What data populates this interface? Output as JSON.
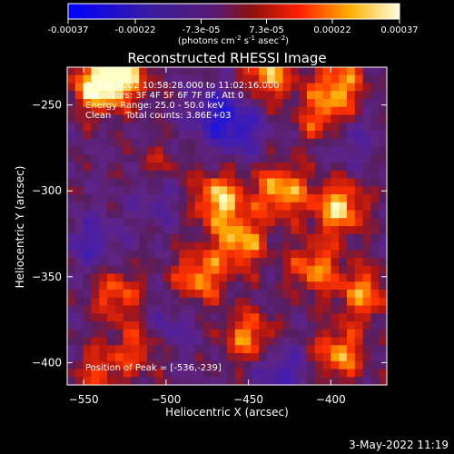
{
  "chart_data": {
    "type": "heatmap",
    "title": "Reconstructed RHESSI Image",
    "xlabel": "Heliocentric X (arcsec)",
    "ylabel": "Heliocentric Y (arcsec)",
    "xlim": [
      -560,
      -366
    ],
    "ylim": [
      -413,
      -228
    ],
    "x_ticks": [
      -550,
      -500,
      -450,
      -400
    ],
    "y_ticks": [
      -250,
      -300,
      -350,
      -400
    ],
    "colorbar": {
      "range": [
        -0.00037,
        0.00037
      ],
      "tick_values": [
        -0.00037,
        -0.00022,
        -7.3e-05,
        7.3e-05,
        0.00022,
        0.00037
      ],
      "tick_labels": [
        "-0.00037",
        "-0.00022",
        "-7.3e-05",
        "7.3e-05",
        "0.00022",
        "0.00037"
      ],
      "units_prefix": "(photons cm",
      "units_exp1": "-2",
      "units_mid": " s",
      "units_exp2": "-1",
      "units_mid2": " asec",
      "units_exp3": "-2",
      "units_suffix": ")"
    },
    "annotations": [
      "2-May-2002 10:58:28.000 to 11:02:16.000",
      "Detectors: 3F 4F 5F 6F 7F 8F, Att 0",
      "Energy Range: 25.0 - 50.0 keV",
      "Clean     Total counts: 3.86E+03"
    ],
    "peak_label": "Position of Peak = [-536,-239]",
    "peak": [
      -536,
      -239
    ],
    "hotspots": [
      {
        "x": -542,
        "y": -239,
        "v": 1.0
      },
      {
        "x": -525,
        "y": -232,
        "v": 0.85
      },
      {
        "x": -438,
        "y": -232,
        "v": 0.8
      },
      {
        "x": -395,
        "y": -238,
        "v": 0.75
      },
      {
        "x": -405,
        "y": -258,
        "v": 0.6
      },
      {
        "x": -468,
        "y": -305,
        "v": 0.9
      },
      {
        "x": -430,
        "y": -300,
        "v": 0.85
      },
      {
        "x": -395,
        "y": -310,
        "v": 0.9
      },
      {
        "x": -455,
        "y": -330,
        "v": 0.8
      },
      {
        "x": -410,
        "y": -345,
        "v": 0.7
      },
      {
        "x": -480,
        "y": -350,
        "v": 0.75
      },
      {
        "x": -530,
        "y": -360,
        "v": 0.6
      },
      {
        "x": -515,
        "y": -390,
        "v": 0.55
      },
      {
        "x": -450,
        "y": -385,
        "v": 0.7
      },
      {
        "x": -395,
        "y": -395,
        "v": 0.75
      },
      {
        "x": -540,
        "y": -405,
        "v": 0.5
      },
      {
        "x": -505,
        "y": -290,
        "v": 0.5
      },
      {
        "x": -380,
        "y": -360,
        "v": 0.7
      }
    ],
    "coldspots": [
      {
        "x": -470,
        "y": -255,
        "v": -0.6
      },
      {
        "x": -455,
        "y": -265,
        "v": -0.55
      },
      {
        "x": -505,
        "y": -300,
        "v": -0.5
      },
      {
        "x": -545,
        "y": -330,
        "v": -0.45
      },
      {
        "x": -500,
        "y": -380,
        "v": -0.4
      },
      {
        "x": -430,
        "y": -405,
        "v": -0.5
      },
      {
        "x": -390,
        "y": -270,
        "v": -0.35
      }
    ]
  },
  "footer": {
    "timestamp": "3-May-2022 11:19"
  }
}
